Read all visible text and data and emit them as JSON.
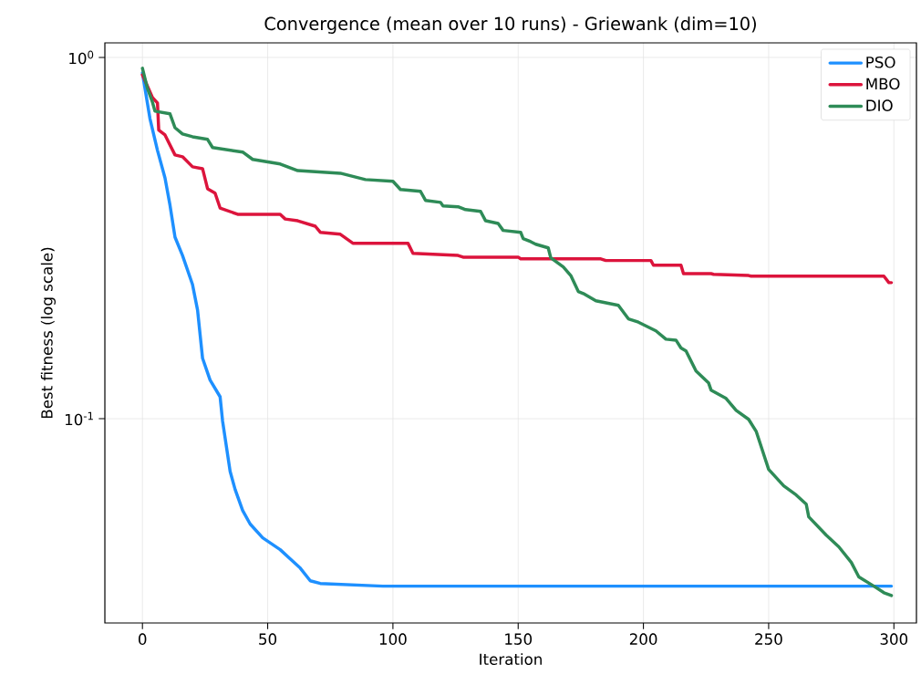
{
  "chart_data": {
    "type": "line",
    "title": "Convergence (mean over 10 runs) - Griewank (dim=10)",
    "xlabel": "Iteration",
    "ylabel": "Best fitness (log scale)",
    "log": "y",
    "grid": true,
    "legend": "top right",
    "xlim": [
      -15,
      309
    ],
    "ylim": [
      0.0272,
      1.097
    ],
    "xticks": [
      0,
      50,
      100,
      150,
      200,
      250,
      300
    ],
    "yticks": [
      {
        "value": 0.1,
        "label": "10$^{-1}$"
      },
      {
        "value": 1,
        "label": "10$^{0}$"
      }
    ],
    "series": [
      {
        "name": "PSO",
        "color": "#1e90ff",
        "x": [
          0,
          3,
          6,
          9,
          11,
          13,
          16,
          20,
          22,
          24,
          27,
          31,
          32,
          35,
          37,
          40,
          43,
          48,
          55,
          59,
          63,
          67,
          71,
          96,
          299
        ],
        "values": [
          0.906,
          0.677,
          0.553,
          0.464,
          0.39,
          0.318,
          0.283,
          0.235,
          0.2,
          0.147,
          0.128,
          0.115,
          0.0985,
          0.0715,
          0.0637,
          0.0557,
          0.0511,
          0.0468,
          0.0434,
          0.0409,
          0.0386,
          0.0356,
          0.035,
          0.0344,
          0.0344
        ]
      },
      {
        "name": "MBO",
        "color": "#dc143c",
        "x": [
          0,
          4,
          6,
          6.5,
          9,
          13,
          16,
          20,
          24,
          26,
          29,
          31,
          38,
          55,
          57,
          62,
          69,
          71,
          79,
          84,
          106,
          108,
          126,
          128,
          150,
          151,
          183,
          185,
          203,
          204,
          215,
          216,
          227,
          228,
          242,
          243,
          296,
          298,
          299
        ],
        "values": [
          0.895,
          0.774,
          0.748,
          0.629,
          0.61,
          0.537,
          0.531,
          0.498,
          0.492,
          0.433,
          0.421,
          0.383,
          0.368,
          0.368,
          0.357,
          0.353,
          0.341,
          0.328,
          0.324,
          0.306,
          0.306,
          0.287,
          0.283,
          0.28,
          0.28,
          0.277,
          0.277,
          0.274,
          0.274,
          0.266,
          0.266,
          0.252,
          0.252,
          0.251,
          0.249,
          0.248,
          0.248,
          0.238,
          0.238
        ]
      },
      {
        "name": "DIO",
        "color": "#2e8b57",
        "x": [
          0,
          2,
          4,
          5,
          11,
          13,
          16,
          20,
          26,
          28,
          40,
          44,
          55,
          62,
          79,
          89,
          100,
          103,
          111,
          113,
          119,
          120,
          126,
          129,
          135,
          137,
          142,
          144,
          151,
          152,
          155,
          157,
          162,
          163,
          168,
          171,
          174,
          176,
          181,
          190,
          194,
          198,
          205,
          209,
          213,
          215,
          217,
          221,
          226,
          227,
          233,
          237,
          242,
          245,
          250,
          256,
          261,
          265,
          266,
          273,
          278,
          283,
          286,
          292,
          296,
          299
        ],
        "values": [
          0.933,
          0.821,
          0.752,
          0.71,
          0.698,
          0.639,
          0.614,
          0.603,
          0.593,
          0.563,
          0.547,
          0.522,
          0.507,
          0.486,
          0.478,
          0.459,
          0.454,
          0.431,
          0.426,
          0.402,
          0.397,
          0.388,
          0.386,
          0.379,
          0.375,
          0.353,
          0.347,
          0.332,
          0.328,
          0.315,
          0.309,
          0.304,
          0.297,
          0.279,
          0.263,
          0.249,
          0.225,
          0.222,
          0.212,
          0.206,
          0.189,
          0.185,
          0.175,
          0.166,
          0.165,
          0.157,
          0.154,
          0.1355,
          0.1257,
          0.12,
          0.1138,
          0.1055,
          0.0996,
          0.0923,
          0.0724,
          0.0652,
          0.0615,
          0.058,
          0.0535,
          0.0476,
          0.0442,
          0.04,
          0.0365,
          0.0344,
          0.033,
          0.0324
        ]
      }
    ]
  }
}
